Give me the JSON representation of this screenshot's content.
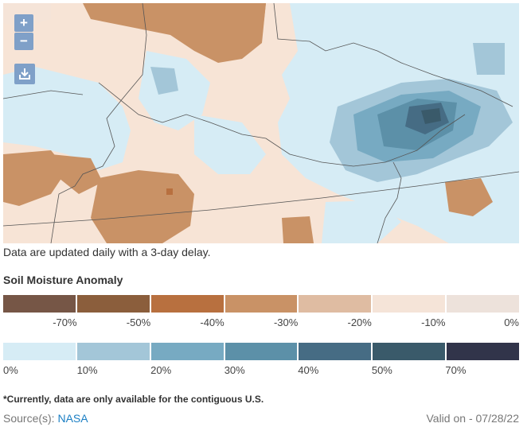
{
  "map": {
    "zoom_in": "+",
    "zoom_out": "−",
    "download_icon": "download-icon"
  },
  "note": "Data are updated daily with a 3-day delay.",
  "legend": {
    "title": "Soil Moisture Anomaly",
    "dry_colors": [
      "#765646",
      "#8b5e3c",
      "#b8703f",
      "#c99266",
      "#dfbca2",
      "#f5e4d8",
      "#ede2db"
    ],
    "dry_labels": [
      "-70%",
      "-50%",
      "-40%",
      "-30%",
      "-20%",
      "-10%",
      "0%"
    ],
    "wet_colors": [
      "#d6ecf5",
      "#a3c6d8",
      "#77aac2",
      "#5c90a8",
      "#466c84",
      "#3a5a6a",
      "#31344a"
    ],
    "wet_labels": [
      "0%",
      "10%",
      "20%",
      "30%",
      "40%",
      "50%",
      "70%"
    ]
  },
  "footnote": "*Currently, data are only available for the contiguous U.S.",
  "source": {
    "label": "Source(s):",
    "link": "NASA"
  },
  "valid": {
    "label": "Valid on",
    "sep": "-",
    "date": "07/28/22"
  }
}
